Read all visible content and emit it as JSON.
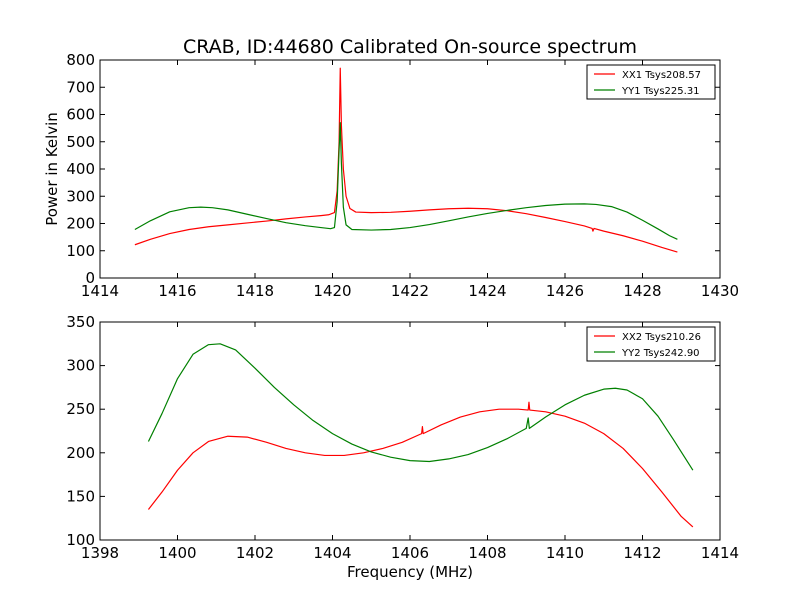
{
  "figure_title": "CRAB, ID:44680 Calibrated On-source spectrum",
  "chart_data": [
    {
      "type": "line",
      "title": "CRAB, ID:44680 Calibrated On-source spectrum",
      "xlabel": "",
      "ylabel": "Power in Kelvin",
      "xlim": [
        1414,
        1430
      ],
      "ylim": [
        0,
        800
      ],
      "xticks": [
        1414,
        1416,
        1418,
        1420,
        1422,
        1424,
        1426,
        1428,
        1430
      ],
      "yticks": [
        0,
        100,
        200,
        300,
        400,
        500,
        600,
        700,
        800
      ],
      "grid": false,
      "legend_position": "top-right",
      "series": [
        {
          "name": "XX1 Tsys208.57",
          "color": "#ff0000",
          "points": [
            [
              1414.9,
              122
            ],
            [
              1415.3,
              142
            ],
            [
              1415.8,
              163
            ],
            [
              1416.3,
              178
            ],
            [
              1416.8,
              188
            ],
            [
              1417.3,
              195
            ],
            [
              1417.8,
              202
            ],
            [
              1418.3,
              209
            ],
            [
              1418.8,
              217
            ],
            [
              1419.3,
              224
            ],
            [
              1419.7,
              229
            ],
            [
              1419.9,
              232
            ],
            [
              1420.05,
              240
            ],
            [
              1420.12,
              320
            ],
            [
              1420.17,
              500
            ],
            [
              1420.2,
              770
            ],
            [
              1420.23,
              560
            ],
            [
              1420.28,
              400
            ],
            [
              1420.35,
              300
            ],
            [
              1420.45,
              255
            ],
            [
              1420.6,
              242
            ],
            [
              1421.0,
              240
            ],
            [
              1421.5,
              241
            ],
            [
              1422.0,
              245
            ],
            [
              1422.5,
              250
            ],
            [
              1423.0,
              254
            ],
            [
              1423.5,
              256
            ],
            [
              1424.0,
              254
            ],
            [
              1424.5,
              247
            ],
            [
              1425.0,
              236
            ],
            [
              1425.5,
              222
            ],
            [
              1426.0,
              207
            ],
            [
              1426.5,
              191
            ],
            [
              1426.7,
              182
            ],
            [
              1426.72,
              172
            ],
            [
              1426.75,
              182
            ],
            [
              1427.0,
              172
            ],
            [
              1427.5,
              155
            ],
            [
              1428.0,
              135
            ],
            [
              1428.5,
              112
            ],
            [
              1428.9,
              95
            ]
          ]
        },
        {
          "name": "YY1 Tsys225.31",
          "color": "#008000",
          "points": [
            [
              1414.9,
              178
            ],
            [
              1415.3,
              210
            ],
            [
              1415.8,
              243
            ],
            [
              1416.3,
              258
            ],
            [
              1416.6,
              260
            ],
            [
              1416.9,
              258
            ],
            [
              1417.3,
              250
            ],
            [
              1417.8,
              234
            ],
            [
              1418.3,
              218
            ],
            [
              1418.8,
              203
            ],
            [
              1419.3,
              192
            ],
            [
              1419.7,
              185
            ],
            [
              1419.95,
              181
            ],
            [
              1420.05,
              185
            ],
            [
              1420.12,
              280
            ],
            [
              1420.17,
              470
            ],
            [
              1420.2,
              570
            ],
            [
              1420.23,
              420
            ],
            [
              1420.28,
              260
            ],
            [
              1420.35,
              195
            ],
            [
              1420.5,
              178
            ],
            [
              1421.0,
              176
            ],
            [
              1421.5,
              178
            ],
            [
              1422.0,
              185
            ],
            [
              1422.5,
              196
            ],
            [
              1423.0,
              210
            ],
            [
              1423.5,
              224
            ],
            [
              1424.0,
              237
            ],
            [
              1424.5,
              248
            ],
            [
              1425.0,
              258
            ],
            [
              1425.5,
              266
            ],
            [
              1426.0,
              271
            ],
            [
              1426.5,
              272
            ],
            [
              1426.8,
              270
            ],
            [
              1427.2,
              262
            ],
            [
              1427.6,
              242
            ],
            [
              1428.0,
              212
            ],
            [
              1428.4,
              180
            ],
            [
              1428.7,
              155
            ],
            [
              1428.9,
              142
            ]
          ]
        }
      ]
    },
    {
      "type": "line",
      "title": "",
      "xlabel": "Frequency (MHz)",
      "ylabel": "",
      "xlim": [
        1398,
        1414
      ],
      "ylim": [
        100,
        350
      ],
      "xticks": [
        1398,
        1400,
        1402,
        1404,
        1406,
        1408,
        1410,
        1412,
        1414
      ],
      "yticks": [
        100,
        150,
        200,
        250,
        300,
        350
      ],
      "grid": false,
      "legend_position": "top-right",
      "series": [
        {
          "name": "XX2 Tsys210.26",
          "color": "#ff0000",
          "points": [
            [
              1399.25,
              135
            ],
            [
              1399.6,
              155
            ],
            [
              1400.0,
              180
            ],
            [
              1400.4,
              200
            ],
            [
              1400.8,
              213
            ],
            [
              1401.3,
              219
            ],
            [
              1401.8,
              218
            ],
            [
              1402.3,
              212
            ],
            [
              1402.8,
              205
            ],
            [
              1403.3,
              200
            ],
            [
              1403.8,
              197
            ],
            [
              1404.3,
              197
            ],
            [
              1404.8,
              200
            ],
            [
              1405.3,
              205
            ],
            [
              1405.8,
              212
            ],
            [
              1406.3,
              222
            ],
            [
              1406.32,
              230
            ],
            [
              1406.34,
              222
            ],
            [
              1406.8,
              232
            ],
            [
              1407.3,
              241
            ],
            [
              1407.8,
              247
            ],
            [
              1408.3,
              250
            ],
            [
              1408.8,
              250
            ],
            [
              1409.05,
              249
            ],
            [
              1409.07,
              258
            ],
            [
              1409.09,
              249
            ],
            [
              1409.5,
              247
            ],
            [
              1410.0,
              242
            ],
            [
              1410.5,
              234
            ],
            [
              1411.0,
              222
            ],
            [
              1411.5,
              205
            ],
            [
              1412.0,
              182
            ],
            [
              1412.5,
              155
            ],
            [
              1413.0,
              127
            ],
            [
              1413.3,
              115
            ]
          ]
        },
        {
          "name": "YY2 Tsys242.90",
          "color": "#008000",
          "points": [
            [
              1399.25,
              213
            ],
            [
              1399.6,
              245
            ],
            [
              1400.0,
              285
            ],
            [
              1400.4,
              313
            ],
            [
              1400.8,
              324
            ],
            [
              1401.1,
              325
            ],
            [
              1401.5,
              318
            ],
            [
              1402.0,
              297
            ],
            [
              1402.5,
              275
            ],
            [
              1403.0,
              255
            ],
            [
              1403.5,
              237
            ],
            [
              1404.0,
              222
            ],
            [
              1404.5,
              210
            ],
            [
              1405.0,
              201
            ],
            [
              1405.5,
              195
            ],
            [
              1406.0,
              191
            ],
            [
              1406.5,
              190
            ],
            [
              1407.0,
              193
            ],
            [
              1407.5,
              198
            ],
            [
              1408.0,
              206
            ],
            [
              1408.5,
              216
            ],
            [
              1409.0,
              228
            ],
            [
              1409.05,
              240
            ],
            [
              1409.08,
              228
            ],
            [
              1409.5,
              241
            ],
            [
              1410.0,
              255
            ],
            [
              1410.5,
              266
            ],
            [
              1411.0,
              273
            ],
            [
              1411.3,
              274
            ],
            [
              1411.6,
              272
            ],
            [
              1412.0,
              262
            ],
            [
              1412.4,
              242
            ],
            [
              1412.8,
              215
            ],
            [
              1413.3,
              180
            ]
          ]
        }
      ]
    }
  ]
}
